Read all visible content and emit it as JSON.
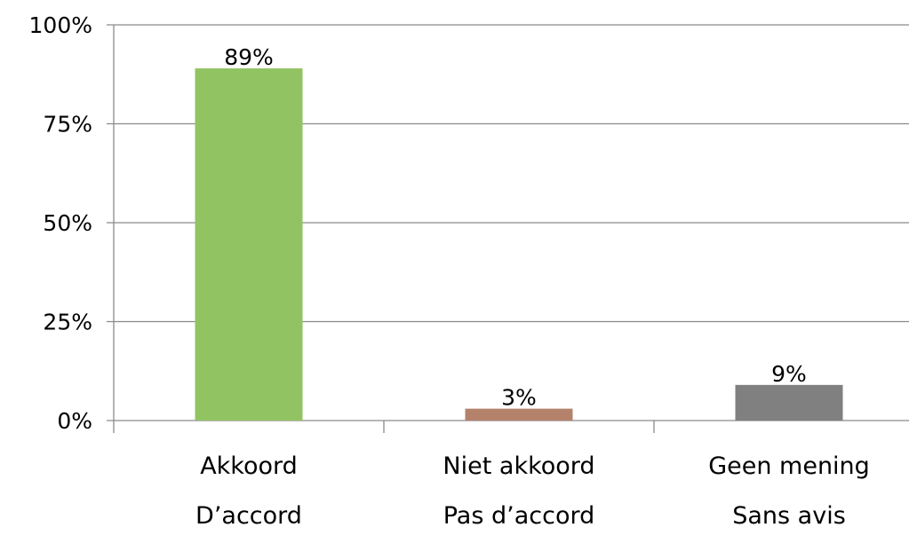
{
  "chart_data": {
    "type": "bar",
    "categories": [
      [
        "Akkoord",
        "D’accord"
      ],
      [
        "Niet akkoord",
        "Pas d’accord"
      ],
      [
        "Geen mening",
        "Sans avis"
      ]
    ],
    "values": [
      89,
      3,
      9
    ],
    "data_labels": [
      "89%",
      "3%",
      "9%"
    ],
    "colors": [
      "#92c362",
      "#b4826a",
      "#808080"
    ],
    "y_ticks": [
      {
        "value": 0,
        "label": "0%"
      },
      {
        "value": 25,
        "label": "25%"
      },
      {
        "value": 50,
        "label": "50%"
      },
      {
        "value": 75,
        "label": "75%"
      },
      {
        "value": 100,
        "label": "100%"
      }
    ],
    "ylim": [
      0,
      100
    ],
    "grid": true,
    "legend": "none",
    "title": "",
    "xlabel": "",
    "ylabel": ""
  }
}
